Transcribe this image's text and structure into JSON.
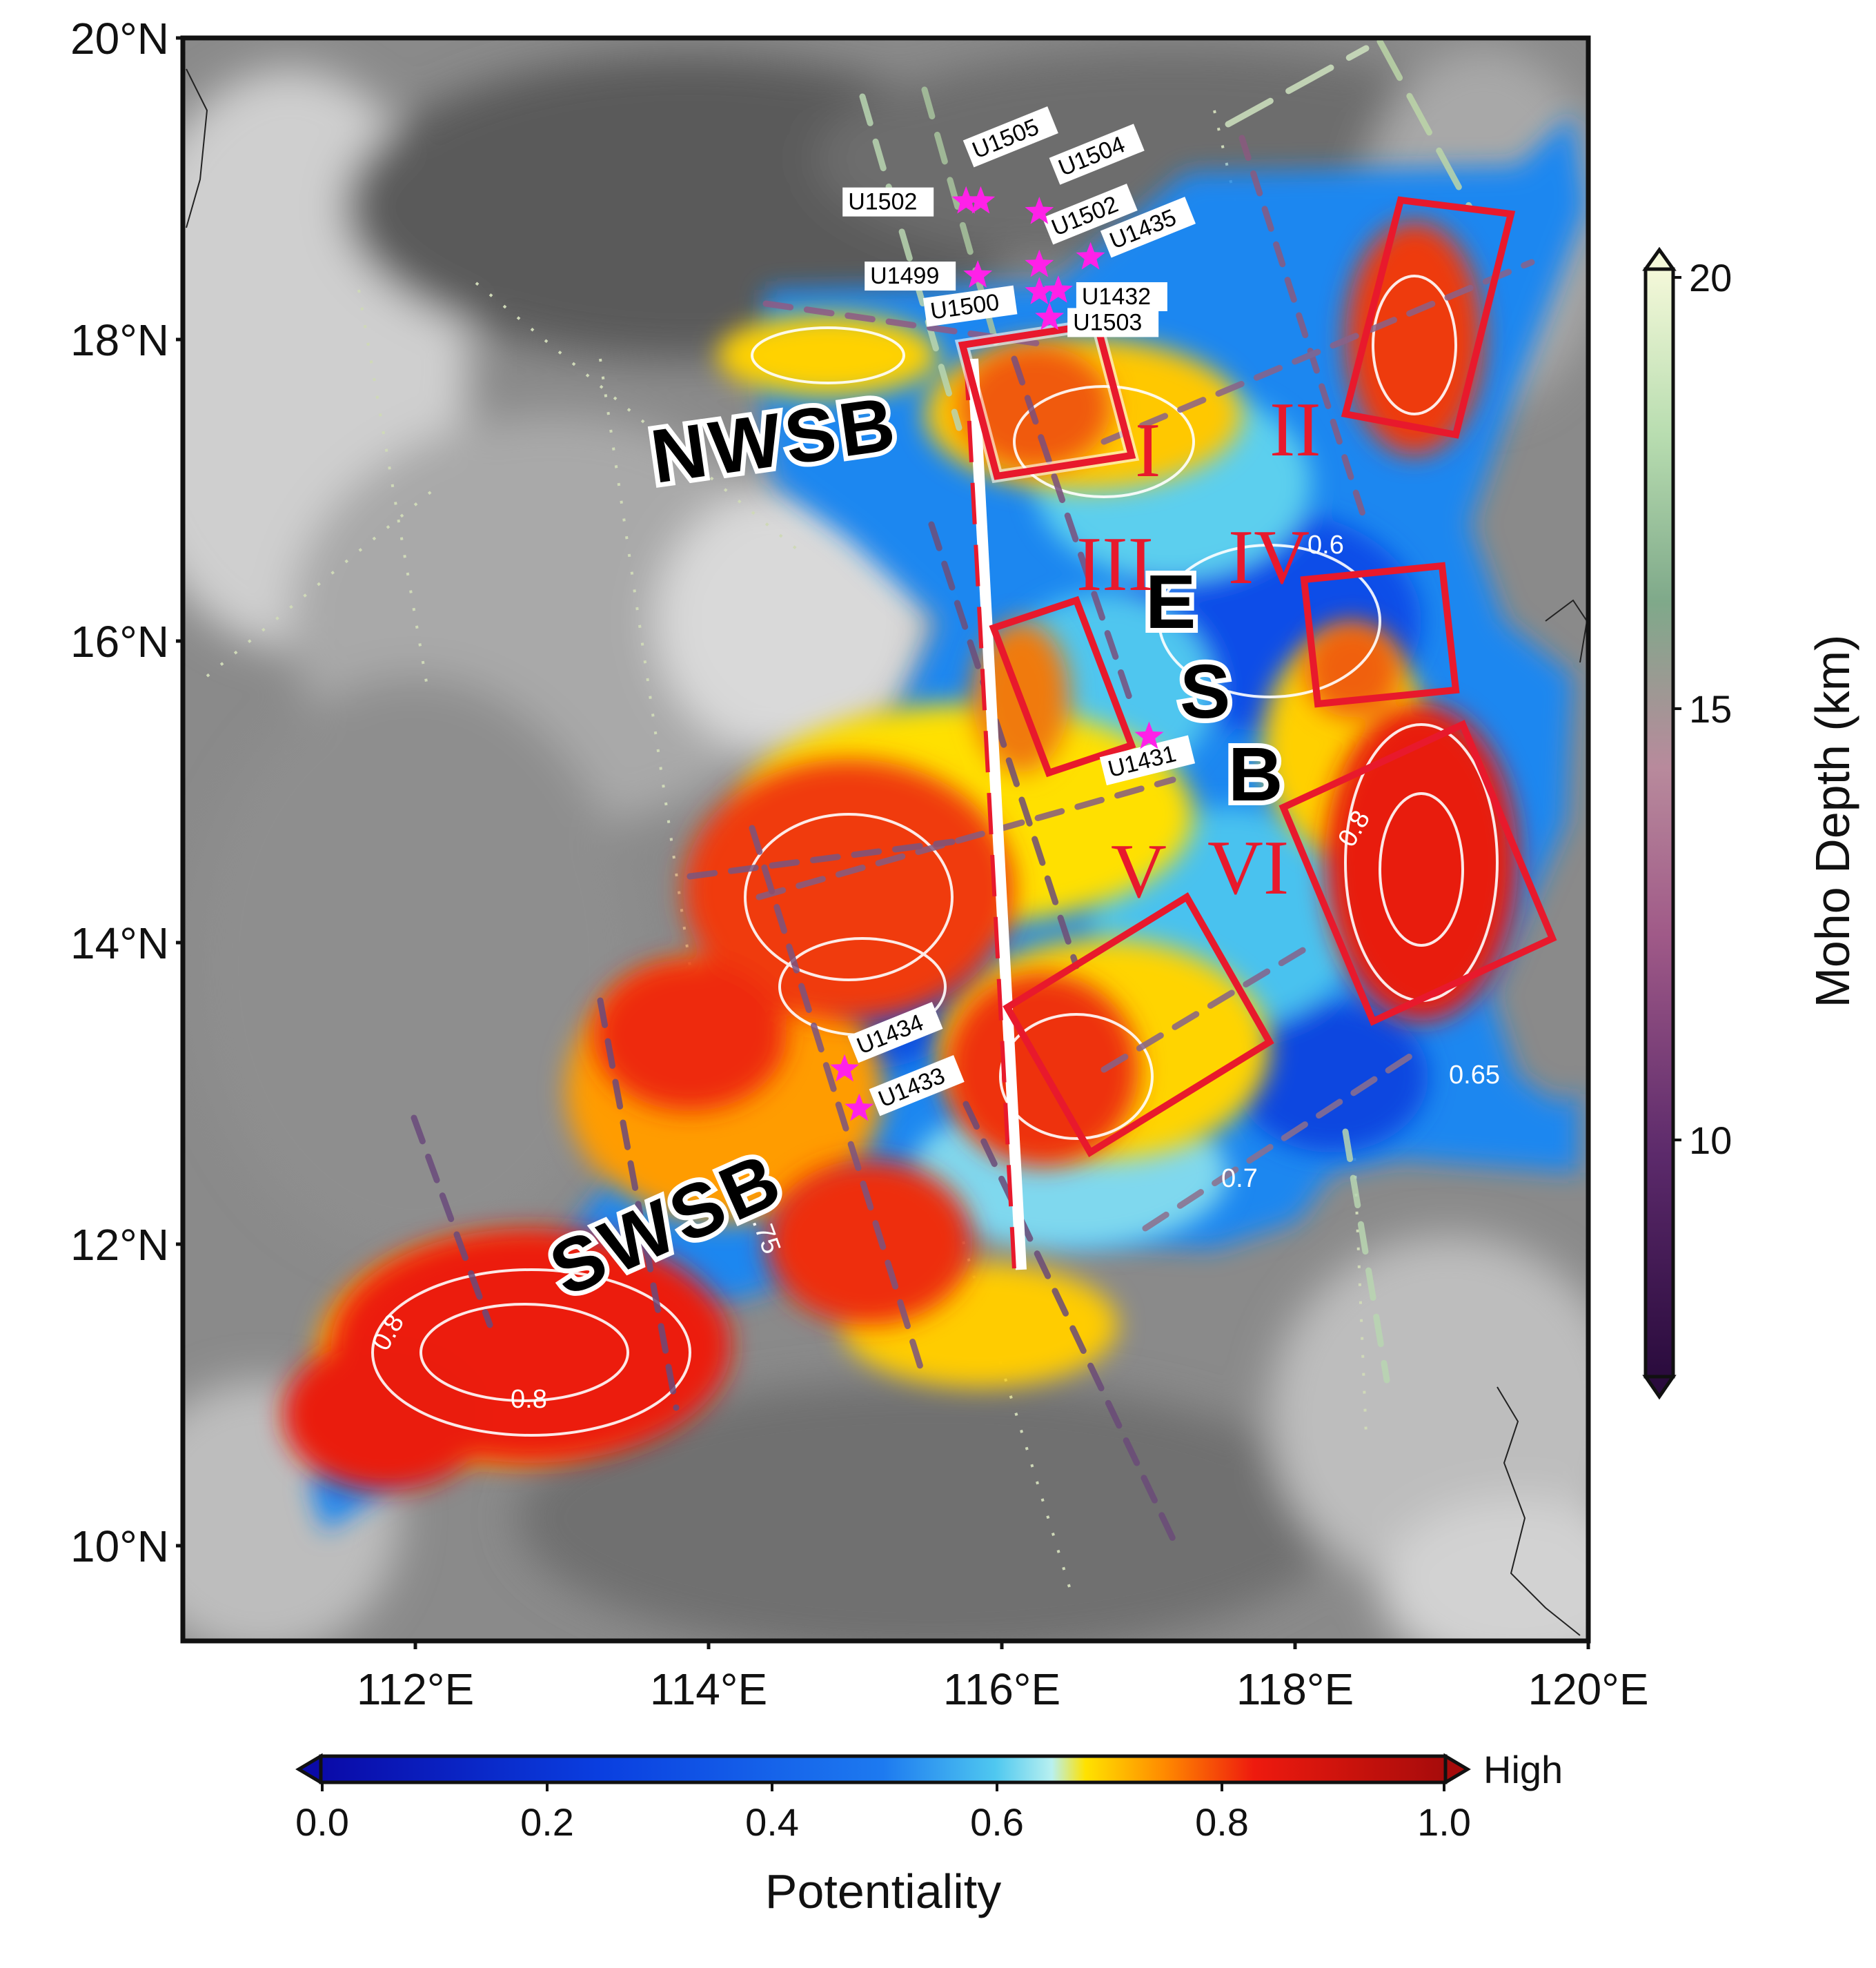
{
  "map": {
    "lat_labels": [
      "20°N",
      "18°N",
      "16°N",
      "14°N",
      "12°N",
      "10°N"
    ],
    "lon_labels": [
      "112°E",
      "114°E",
      "116°E",
      "118°E",
      "120°E"
    ],
    "basins": {
      "nwsb": "NWSB",
      "swsb": "SWSB",
      "esb": [
        "E",
        "S",
        "B"
      ]
    },
    "zones": [
      "I",
      "II",
      "III",
      "IV",
      "V",
      "VI"
    ],
    "contour_labels": [
      "0.6",
      "0.8",
      "0.8",
      "0.8",
      "0.65",
      "0.7",
      ".75"
    ],
    "sites": [
      {
        "id": "U1505",
        "lon": 115.85,
        "lat": 18.92
      },
      {
        "id": "U1504",
        "lon": 116.25,
        "lat": 18.85
      },
      {
        "id": "U1502",
        "lon": 115.75,
        "lat": 18.92
      },
      {
        "id": "U1502",
        "lon": 116.25,
        "lat": 18.5
      },
      {
        "id": "U1435",
        "lon": 116.6,
        "lat": 18.55
      },
      {
        "id": "U1499",
        "lon": 115.83,
        "lat": 18.43
      },
      {
        "id": "U1432",
        "lon": 116.38,
        "lat": 18.33
      },
      {
        "id": "U1500",
        "lon": 116.25,
        "lat": 18.32
      },
      {
        "id": "U1503",
        "lon": 116.32,
        "lat": 18.15
      },
      {
        "id": "U1431",
        "lon": 117.0,
        "lat": 15.38
      },
      {
        "id": "U1434",
        "lon": 114.92,
        "lat": 13.18
      },
      {
        "id": "U1433",
        "lon": 115.02,
        "lat": 12.92
      }
    ]
  },
  "colorbars": {
    "moho": {
      "title": "Moho Depth (km)",
      "ticks": [
        "20",
        "15",
        "10"
      ]
    },
    "potentiality": {
      "title": "Potentiality",
      "ticks": [
        "0.0",
        "0.2",
        "0.4",
        "0.6",
        "0.8",
        "1.0"
      ],
      "extend_label": "High"
    }
  },
  "colors": {
    "site_marker": "#ff21e8",
    "zone_box": "#e8192c",
    "frame": "#111111"
  }
}
